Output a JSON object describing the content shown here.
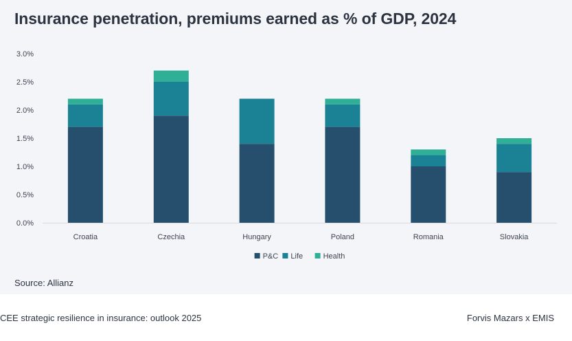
{
  "title": "Insurance penetration, premiums earned as % of GDP, 2024",
  "source": "Source: Allianz",
  "footer": {
    "left": "CEE strategic resilience in insurance: outlook 2025",
    "right": "Forvis Mazars x EMIS"
  },
  "chart_data": {
    "type": "bar",
    "stacked": true,
    "title": "Insurance penetration, premiums earned as % of GDP, 2024",
    "categories": [
      "Croatia",
      "Czechia",
      "Hungary",
      "Poland",
      "Romania",
      "Slovakia"
    ],
    "series": [
      {
        "name": "P&C",
        "color": "#264f6e",
        "values": [
          1.7,
          1.9,
          1.4,
          1.7,
          1.0,
          0.9
        ]
      },
      {
        "name": "Life",
        "color": "#1b8195",
        "values": [
          0.4,
          0.6,
          0.8,
          0.4,
          0.2,
          0.5
        ]
      },
      {
        "name": "Health",
        "color": "#2eaf96",
        "values": [
          0.1,
          0.2,
          0.0,
          0.1,
          0.1,
          0.1
        ]
      }
    ],
    "ylim": [
      0,
      3.0
    ],
    "yticks": [
      "0.0%",
      "0.5%",
      "1.0%",
      "1.5%",
      "2.0%",
      "2.5%",
      "3.0%"
    ],
    "ytick_values": [
      0,
      0.5,
      1.0,
      1.5,
      2.0,
      2.5,
      3.0
    ],
    "xlabel": "",
    "ylabel": "",
    "legend_position": "bottom-center",
    "grid": false
  }
}
